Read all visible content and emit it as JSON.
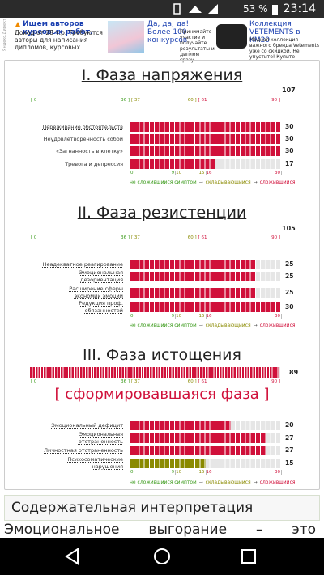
{
  "status_bar": {
    "time": "23:14",
    "battery": "53 %"
  },
  "ad": {
    "source": "Яндекс.Директ",
    "items": [
      {
        "title": "Ищем авторов курсовых работ.",
        "text": "Доход от 28 т.р. Требуются авторы для написания дипломов, курсовых."
      },
      {
        "title": "Да, да, да! Более 100 конкурсов",
        "text": "Принимайте участие и получайте результаты и диплом сразу."
      },
      {
        "title": "Коллекция VETEMENTS в KM20",
        "text": "Модная коллекция важного бренда Vetements уже со скидкой. Не упустите! Купите"
      }
    ]
  },
  "phases": [
    {
      "title": "I. Фаза напряжения",
      "total": 107,
      "scale": {
        "ticks": [
          {
            "value": 0,
            "label": "[ 0"
          },
          {
            "value": 36,
            "label": "36 ]"
          },
          {
            "value": 37,
            "label": "[ 37"
          },
          {
            "value": 60,
            "label": "60 ]"
          },
          {
            "value": 61,
            "label": "[ 61"
          },
          {
            "value": 90,
            "label": "90 ]"
          }
        ],
        "tick_colors": [
          "#3a9a1a",
          "#3a9a1a",
          "#8a8a00",
          "#8a8a00",
          "#d0103a",
          "#d0103a"
        ]
      },
      "items": [
        {
          "label": "Переживание обстоятельств",
          "value": 30,
          "color": "#d0103a"
        },
        {
          "label": "Неудовлетворенность собой",
          "value": 30,
          "color": "#d0103a"
        },
        {
          "label": "«Загнанность в клетку»",
          "value": 30,
          "color": "#d0103a"
        },
        {
          "label": "Тревога и депрессия",
          "value": 17,
          "color": "#d0103a"
        }
      ],
      "item_ticks": [
        0,
        9,
        10,
        15,
        16,
        30
      ],
      "item_tick_colors": [
        "#3a9a1a",
        "#3a9a1a",
        "#8a8a00",
        "#8a8a00",
        "#d0103a",
        "#d0103a"
      ],
      "legend": {
        "items": [
          "не сложившийся симптом",
          "складывающийся",
          "сложившийся"
        ],
        "colors": [
          "#3a9a1a",
          "#8a8a00",
          "#d0103a"
        ],
        "separator": "→"
      }
    },
    {
      "title": "II. Фаза резистенции",
      "total": 105,
      "scale": {
        "ticks": [
          {
            "value": 0,
            "label": "[ 0"
          },
          {
            "value": 36,
            "label": "36 ]"
          },
          {
            "value": 37,
            "label": "[ 37"
          },
          {
            "value": 60,
            "label": "60 ]"
          },
          {
            "value": 61,
            "label": "[ 61"
          },
          {
            "value": 90,
            "label": "90 ]"
          }
        ],
        "tick_colors": [
          "#3a9a1a",
          "#3a9a1a",
          "#8a8a00",
          "#8a8a00",
          "#d0103a",
          "#d0103a"
        ]
      },
      "items": [
        {
          "label": "Неадекватное реагирование",
          "value": 25,
          "color": "#d0103a"
        },
        {
          "label": "Эмоциональная дезориентация",
          "value": 25,
          "color": "#d0103a"
        },
        {
          "label": "Расширение сферы экономии эмоций",
          "value": 25,
          "color": "#d0103a"
        },
        {
          "label": "Редукция проф. обязанностей",
          "value": 30,
          "color": "#d0103a"
        }
      ],
      "item_ticks": [
        0,
        9,
        10,
        15,
        16,
        30
      ],
      "item_tick_colors": [
        "#3a9a1a",
        "#3a9a1a",
        "#8a8a00",
        "#8a8a00",
        "#d0103a",
        "#d0103a"
      ],
      "legend": {
        "items": [
          "не сложившийся симптом",
          "складывающийся",
          "сложившийся"
        ],
        "colors": [
          "#3a9a1a",
          "#8a8a00",
          "#d0103a"
        ],
        "separator": "→"
      }
    },
    {
      "title": "III. Фаза истощения",
      "total": 89,
      "total_color": "#d0103a",
      "verdict": "[ сформировавшаяся фаза ]",
      "scale": {
        "ticks": [
          {
            "value": 0,
            "label": "[ 0"
          },
          {
            "value": 36,
            "label": "36 ]"
          },
          {
            "value": 37,
            "label": "[ 37"
          },
          {
            "value": 60,
            "label": "60 ]"
          },
          {
            "value": 61,
            "label": "[ 61"
          },
          {
            "value": 90,
            "label": "90 ]"
          }
        ],
        "tick_colors": [
          "#3a9a1a",
          "#3a9a1a",
          "#8a8a00",
          "#8a8a00",
          "#d0103a",
          "#d0103a"
        ]
      },
      "items": [
        {
          "label": "Эмоциональный дефицит",
          "value": 20,
          "color": "#d0103a"
        },
        {
          "label": "Эмоциональная отстраненность",
          "value": 27,
          "color": "#d0103a"
        },
        {
          "label": "Личностная отстраненность",
          "value": 27,
          "color": "#d0103a"
        },
        {
          "label": "Психосоматические нарушения",
          "value": 15,
          "color": "#8a8a00"
        }
      ],
      "item_ticks": [
        0,
        9,
        10,
        15,
        16,
        30
      ],
      "item_tick_colors": [
        "#3a9a1a",
        "#3a9a1a",
        "#8a8a00",
        "#8a8a00",
        "#d0103a",
        "#d0103a"
      ],
      "legend": {
        "items": [
          "не сложившийся симптом",
          "складывающийся",
          "сложившийся"
        ],
        "colors": [
          "#3a9a1a",
          "#8a8a00",
          "#d0103a"
        ],
        "separator": "→"
      }
    }
  ],
  "section": {
    "heading": "Содержательная интерпретация",
    "text": "Эмоциональное выгорание – это"
  }
}
